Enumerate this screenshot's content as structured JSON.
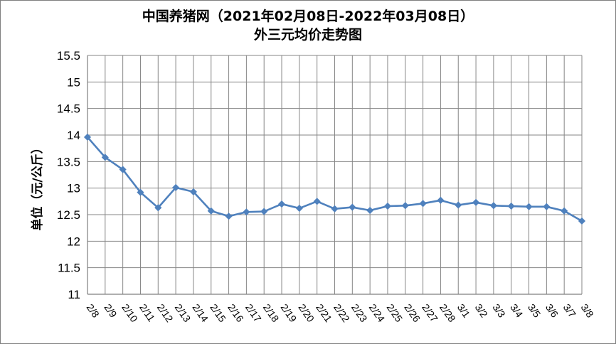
{
  "chart_data": {
    "type": "line",
    "title": "中国养猪网（2021年02月08日-2022年03月08日）",
    "subtitle": "外三元均价走势图",
    "ylabel": "单位（元/公斤）",
    "xlabel": "",
    "ylim": [
      11,
      15.5
    ],
    "ytick_step": 0.5,
    "yticks": [
      "11",
      "11.5",
      "12",
      "12.5",
      "13",
      "13.5",
      "14",
      "14.5",
      "15",
      "15.5"
    ],
    "grid": true,
    "legend": "none",
    "line_color": "#4f81bd",
    "categories": [
      "2/8",
      "2/9",
      "2/10",
      "2/11",
      "2/12",
      "2/13",
      "2/14",
      "2/15",
      "2/16",
      "2/17",
      "2/18",
      "2/19",
      "2/20",
      "2/21",
      "2/22",
      "2/23",
      "2/24",
      "2/25",
      "2/26",
      "2/27",
      "2/28",
      "3/1",
      "3/2",
      "3/3",
      "3/4",
      "3/5",
      "3/6",
      "3/7",
      "3/8"
    ],
    "values": [
      13.96,
      13.58,
      13.35,
      12.92,
      12.63,
      13.01,
      12.93,
      12.57,
      12.47,
      12.55,
      12.56,
      12.7,
      12.62,
      12.75,
      12.61,
      12.64,
      12.58,
      12.66,
      12.67,
      12.71,
      12.77,
      12.68,
      12.73,
      12.67,
      12.66,
      12.65,
      12.65,
      12.57,
      12.38
    ]
  }
}
